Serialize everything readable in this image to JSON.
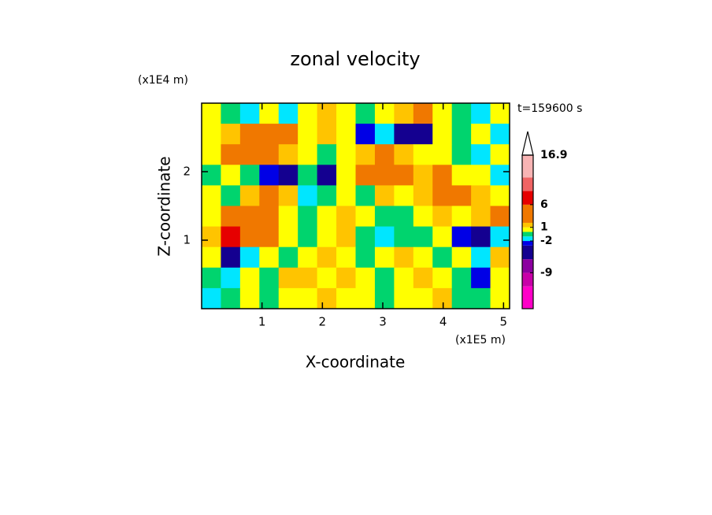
{
  "chart_data": {
    "type": "contour",
    "title": "zonal velocity",
    "x_label": "X-coordinate",
    "y_label": "Z-coordinate",
    "x_unit": "(x1E5 m)",
    "y_unit": "(x1E4 m)",
    "annotation": "t=159600 s",
    "xlim": [
      0,
      5.1
    ],
    "ylim": [
      0,
      3
    ],
    "xticks": [
      1,
      2,
      3,
      4,
      5
    ],
    "yticks": [
      1,
      2
    ],
    "field": [
      [
        0.5,
        -0.5,
        -1.5,
        0.5,
        -1.5,
        0.5,
        1.5,
        0.5,
        -0.5,
        0.5,
        1.5,
        2.5,
        0.5,
        -0.5,
        -1.5,
        0.5
      ],
      [
        0.5,
        1.5,
        3,
        4,
        3,
        0.5,
        1.5,
        0.5,
        -2.5,
        -1.5,
        -4,
        -5,
        0.5,
        -0.5,
        0.5,
        -1.5
      ],
      [
        0.5,
        3,
        4,
        3,
        1.5,
        0.5,
        -0.5,
        0.5,
        1.5,
        3,
        1.5,
        0.5,
        0.5,
        -0.5,
        -1.5,
        0.5
      ],
      [
        -0.5,
        0.5,
        -0.5,
        -3,
        -4,
        -0.5,
        -4,
        0.5,
        3,
        4,
        4,
        1.5,
        3,
        0.5,
        0.5,
        -1.5
      ],
      [
        0.5,
        -0.5,
        1.5,
        4,
        1.5,
        -1.5,
        -0.5,
        0.5,
        -0.5,
        1.5,
        0.5,
        1.5,
        4,
        3,
        1.5,
        0.5
      ],
      [
        0.5,
        3,
        4,
        3,
        0.5,
        -0.5,
        0.5,
        1.5,
        0.5,
        -0.5,
        -0.5,
        0.5,
        1.5,
        0.5,
        1.5,
        3
      ],
      [
        1.5,
        8,
        4,
        3,
        0.5,
        -0.5,
        0.5,
        1.5,
        -0.5,
        -1.5,
        -0.5,
        -0.5,
        0.5,
        -2.5,
        -5,
        -1.5
      ],
      [
        0.5,
        -4,
        -1.5,
        0.5,
        -0.5,
        0.5,
        1.5,
        0.5,
        -0.5,
        0.5,
        1.5,
        0.5,
        -0.5,
        0.5,
        -1.5,
        1.5
      ],
      [
        -0.5,
        -1.5,
        0.5,
        -0.5,
        1.5,
        1.5,
        0.5,
        1.5,
        0.5,
        -0.5,
        0.5,
        1.5,
        0.5,
        -0.5,
        -3,
        0.5
      ],
      [
        -1.5,
        -0.5,
        0.5,
        -0.5,
        0.5,
        0.5,
        1.5,
        0.5,
        0.5,
        -0.5,
        0.5,
        0.5,
        1.5,
        -0.5,
        -0.5,
        0.5
      ]
    ],
    "colorbar": {
      "levels": [
        -16.9,
        -12,
        -9,
        -6,
        -3,
        -2,
        -1,
        0,
        1,
        2,
        6,
        9,
        12,
        16.9
      ],
      "colors": [
        "#ff00c8",
        "#c800a8",
        "#8c00a0",
        "#140090",
        "#0000e6",
        "#00e6ff",
        "#00d46e",
        "#ffff00",
        "#ffc400",
        "#f07800",
        "#e60000",
        "#f06464",
        "#f8b4b4"
      ],
      "extend_color": "#ffffff",
      "ticks": [
        -9,
        -2,
        1,
        6,
        16.9
      ]
    }
  }
}
